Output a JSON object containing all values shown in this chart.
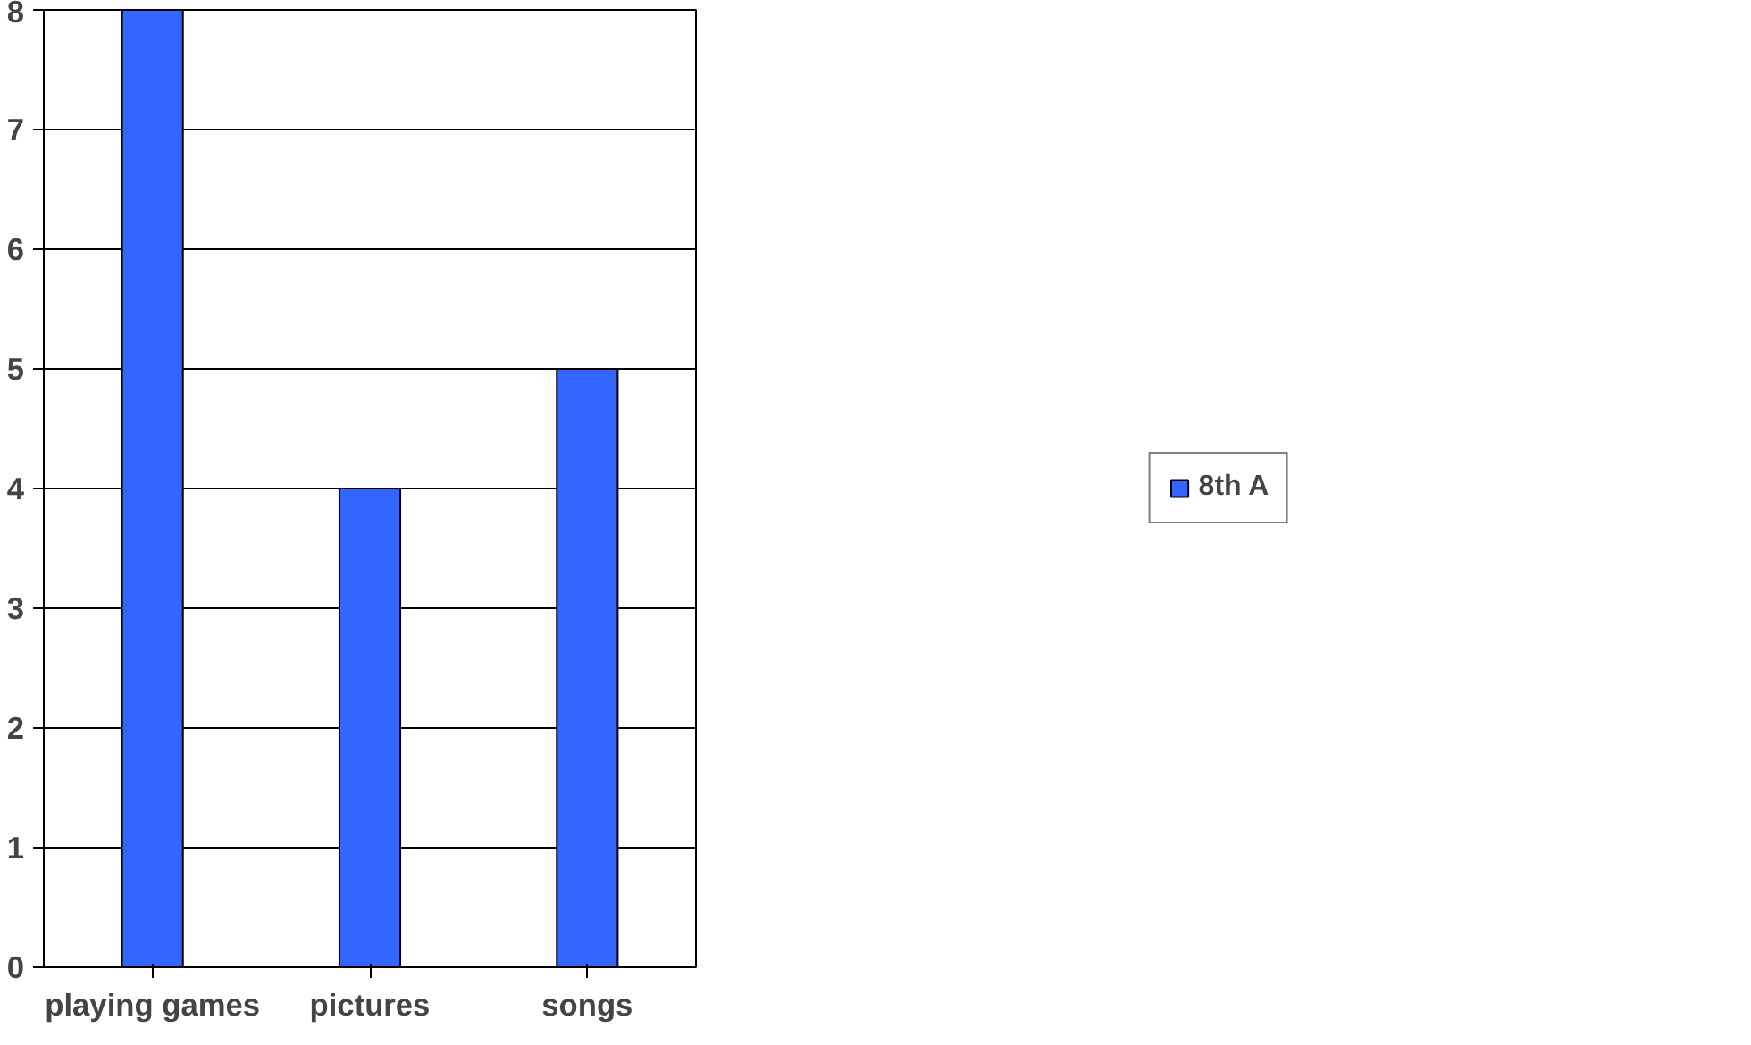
{
  "chart_data": {
    "type": "bar",
    "categories": [
      "playing games",
      "pictures",
      "songs"
    ],
    "series": [
      {
        "name": "8th A",
        "color": "#3366ff",
        "values": [
          8,
          4,
          5
        ]
      },
      {
        "color": "#99ccff",
        "values": [
          null,
          null,
          null
        ]
      }
    ],
    "ylim": [
      0,
      8
    ],
    "yticks": [
      0,
      1,
      2,
      3,
      4,
      5,
      6,
      7,
      8
    ],
    "grid": "y",
    "legend": "right"
  }
}
